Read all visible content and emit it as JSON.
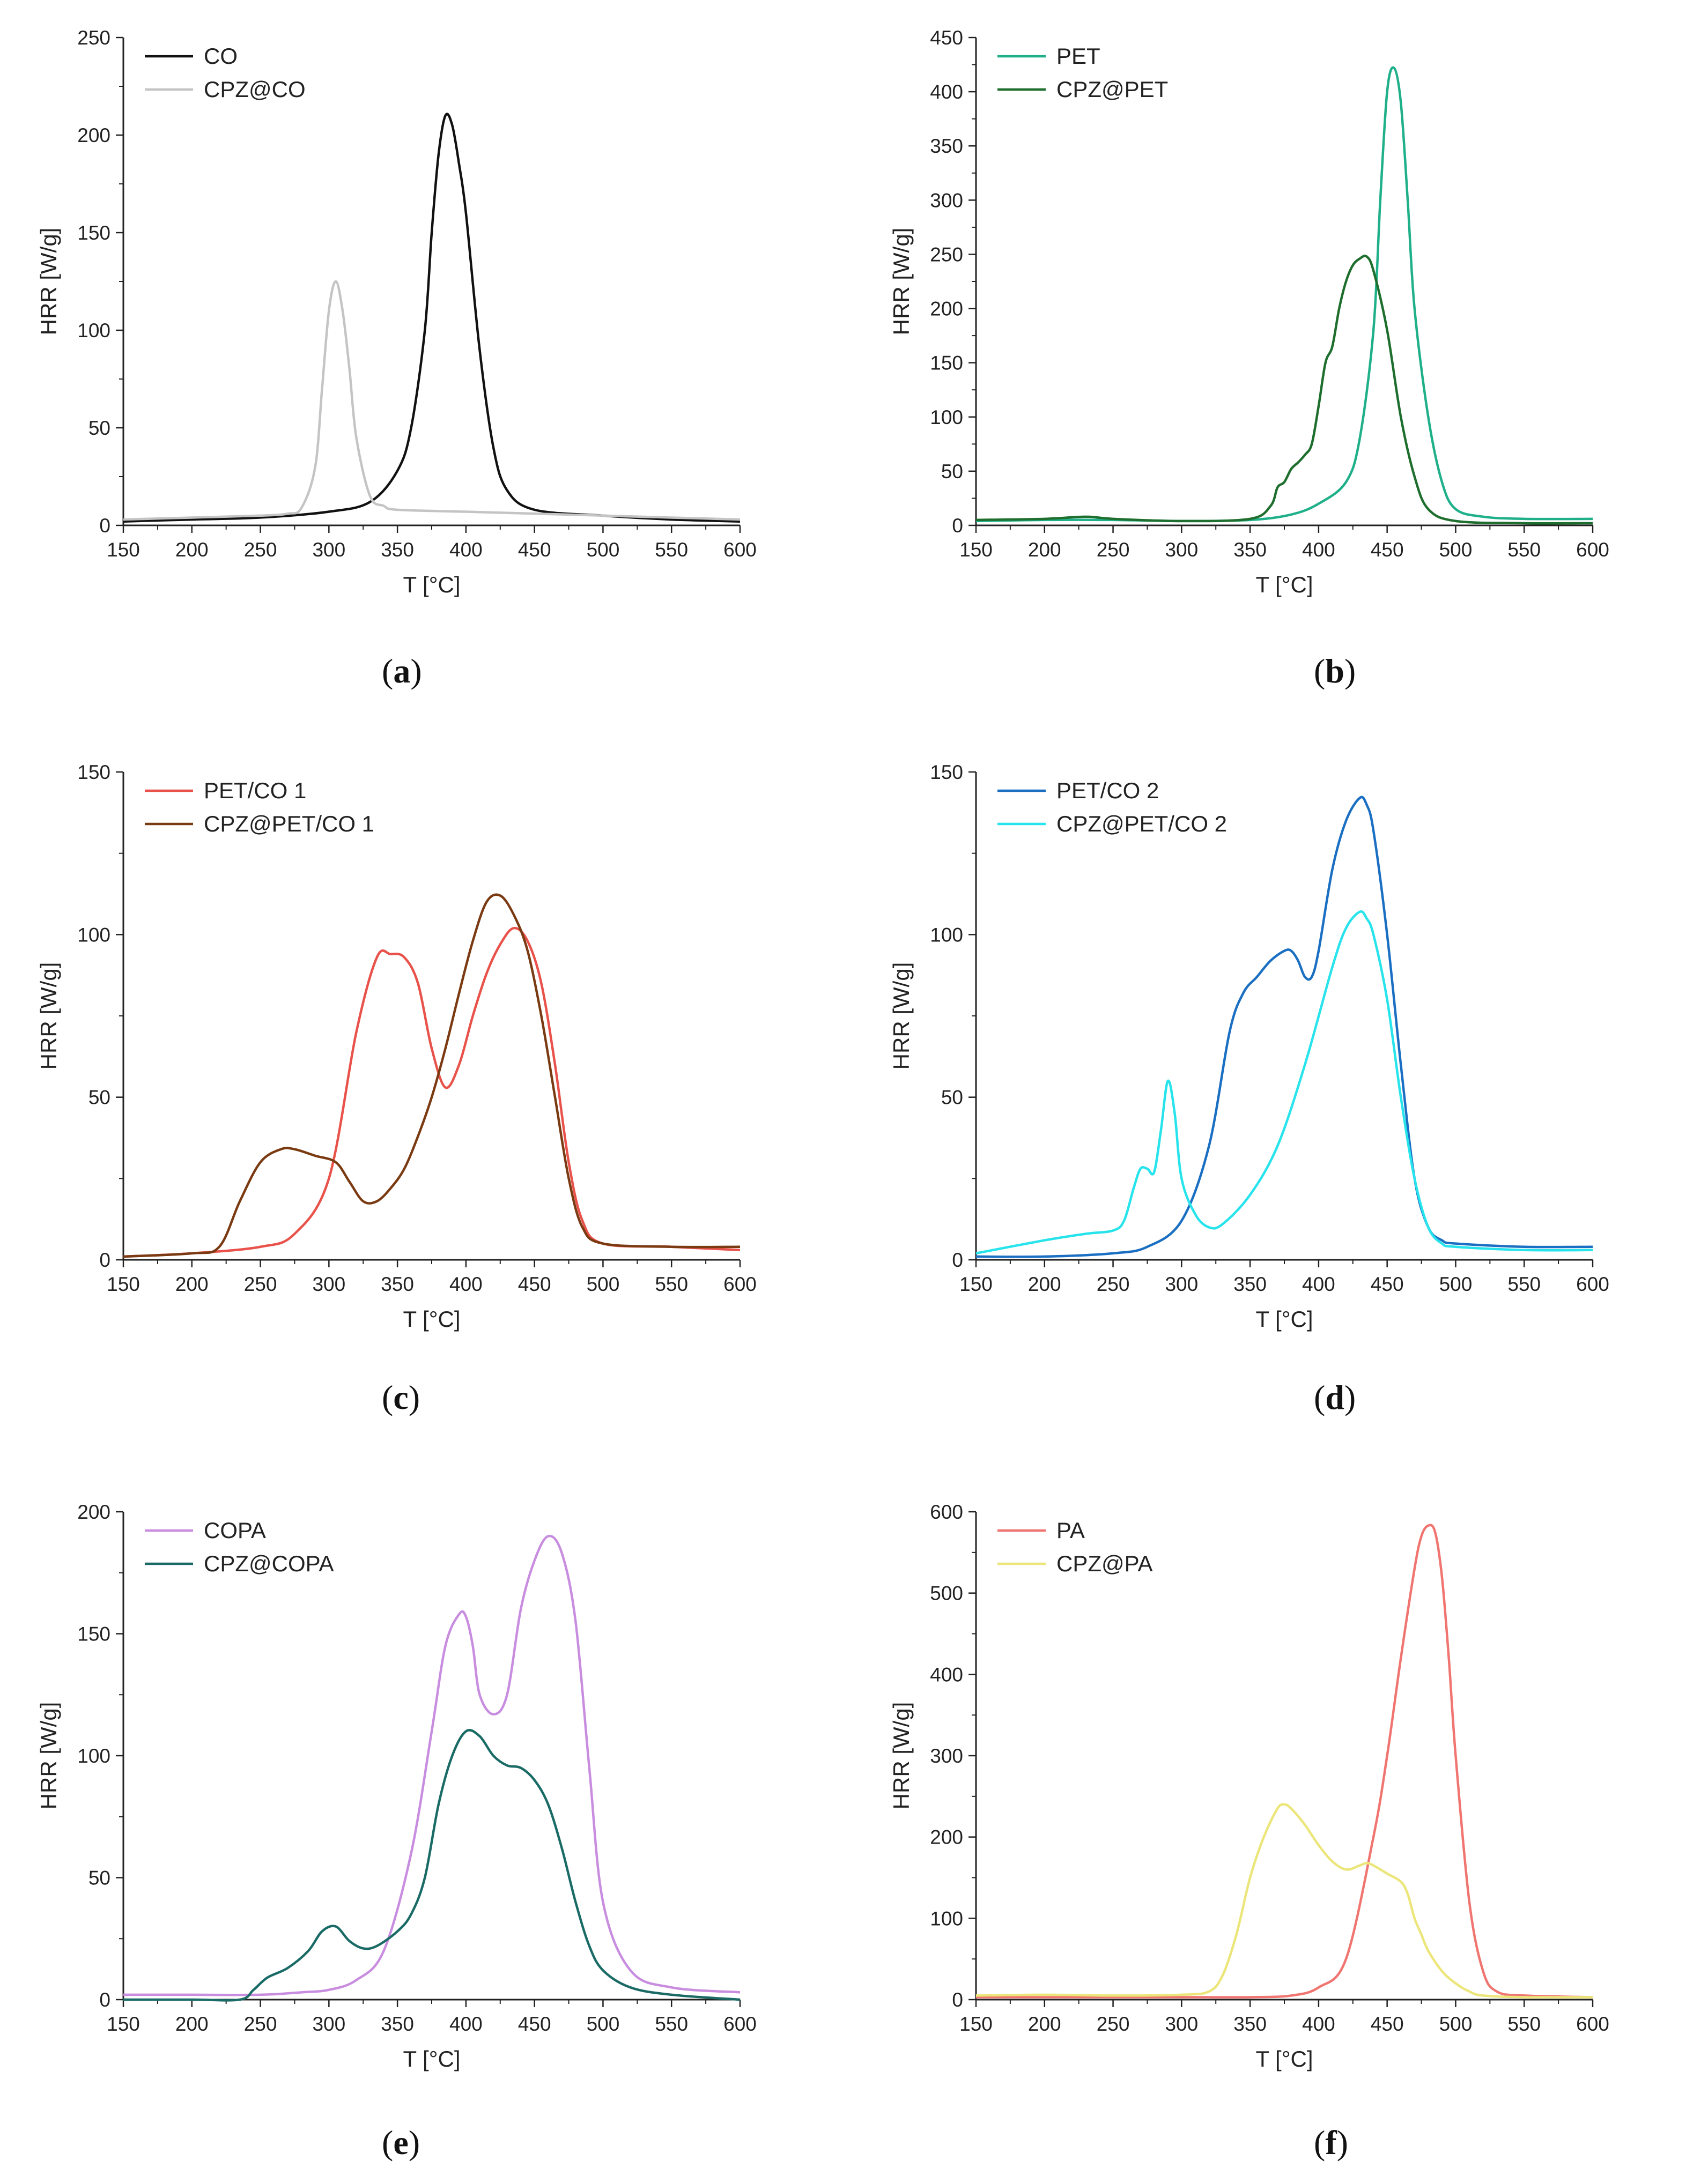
{
  "chart_data": [
    {
      "id": "a",
      "panel_label": "a",
      "type": "line",
      "xlabel": "T [°C]",
      "ylabel": "HRR [W/g]",
      "xlim": [
        150,
        600
      ],
      "ylim": [
        0,
        250
      ],
      "xticks": [
        150,
        200,
        250,
        300,
        350,
        400,
        450,
        500,
        550,
        600
      ],
      "yticks": [
        0,
        50,
        100,
        150,
        200,
        250
      ],
      "legend_position": "top-left",
      "series": [
        {
          "name": "CO",
          "color": "#111111",
          "x": [
            150,
            200,
            250,
            300,
            330,
            350,
            360,
            370,
            375,
            380,
            385,
            390,
            395,
            400,
            410,
            420,
            430,
            450,
            500,
            550,
            600
          ],
          "y": [
            2,
            3,
            4,
            7,
            12,
            28,
            50,
            100,
            150,
            190,
            210,
            205,
            185,
            160,
            90,
            40,
            18,
            8,
            5,
            3,
            2
          ]
        },
        {
          "name": "CPZ@CO",
          "color": "#c4c4c4",
          "x": [
            150,
            200,
            250,
            270,
            280,
            290,
            295,
            300,
            305,
            310,
            315,
            320,
            330,
            340,
            350,
            400,
            450,
            500,
            550,
            600
          ],
          "y": [
            3,
            4,
            5,
            6,
            9,
            30,
            70,
            110,
            125,
            110,
            80,
            45,
            15,
            10,
            8,
            7,
            6,
            5,
            4,
            3
          ]
        }
      ]
    },
    {
      "id": "b",
      "panel_label": "b",
      "type": "line",
      "xlabel": "T [°C]",
      "ylabel": "HRR [W/g]",
      "xlim": [
        150,
        600
      ],
      "ylim": [
        0,
        450
      ],
      "xticks": [
        150,
        200,
        250,
        300,
        350,
        400,
        450,
        500,
        550,
        600
      ],
      "yticks": [
        0,
        50,
        100,
        150,
        200,
        250,
        300,
        350,
        400,
        450
      ],
      "legend_position": "top-left",
      "series": [
        {
          "name": "PET",
          "color": "#1fb08a",
          "x": [
            150,
            200,
            250,
            300,
            350,
            380,
            400,
            420,
            430,
            440,
            445,
            450,
            455,
            460,
            465,
            470,
            480,
            490,
            500,
            520,
            550,
            600
          ],
          "y": [
            4,
            5,
            5,
            4,
            5,
            10,
            20,
            40,
            80,
            180,
            300,
            400,
            422,
            390,
            300,
            200,
            100,
            40,
            15,
            8,
            6,
            6
          ]
        },
        {
          "name": "CPZ@PET",
          "color": "#1e6e2e",
          "x": [
            150,
            200,
            230,
            250,
            300,
            350,
            365,
            370,
            375,
            380,
            385,
            390,
            395,
            400,
            405,
            410,
            415,
            420,
            425,
            430,
            435,
            440,
            450,
            460,
            470,
            480,
            500,
            550,
            600
          ],
          "y": [
            5,
            6,
            8,
            6,
            4,
            6,
            18,
            35,
            40,
            52,
            58,
            65,
            75,
            110,
            150,
            165,
            200,
            225,
            240,
            246,
            248,
            235,
            180,
            100,
            45,
            15,
            4,
            2,
            2
          ]
        }
      ]
    },
    {
      "id": "c",
      "panel_label": "c",
      "type": "line",
      "xlabel": "T [°C]",
      "ylabel": "HRR [W/g]",
      "xlim": [
        150,
        600
      ],
      "ylim": [
        0,
        150
      ],
      "xticks": [
        150,
        200,
        250,
        300,
        350,
        400,
        450,
        500,
        550,
        600
      ],
      "yticks": [
        0,
        50,
        100,
        150
      ],
      "legend_position": "top-left",
      "series": [
        {
          "name": "PET/CO 1",
          "color": "#e8524a",
          "x": [
            150,
            200,
            250,
            275,
            300,
            320,
            335,
            345,
            355,
            365,
            375,
            385,
            395,
            405,
            415,
            425,
            435,
            445,
            455,
            465,
            475,
            485,
            500,
            550,
            600
          ],
          "y": [
            1,
            2,
            4,
            8,
            25,
            70,
            93,
            94,
            93,
            85,
            65,
            53,
            60,
            75,
            88,
            97,
            102,
            98,
            85,
            60,
            30,
            12,
            5,
            4,
            3
          ]
        },
        {
          "name": "CPZ@PET/CO 1",
          "color": "#7a3a12",
          "x": [
            150,
            200,
            220,
            235,
            250,
            265,
            275,
            290,
            305,
            315,
            325,
            335,
            345,
            355,
            365,
            375,
            385,
            395,
            405,
            415,
            425,
            435,
            445,
            455,
            465,
            475,
            485,
            500,
            550,
            600
          ],
          "y": [
            1,
            2,
            4,
            18,
            30,
            34,
            34,
            32,
            30,
            24,
            18,
            18,
            22,
            28,
            38,
            50,
            65,
            82,
            98,
            110,
            112,
            106,
            95,
            75,
            50,
            25,
            10,
            5,
            4,
            4
          ]
        }
      ]
    },
    {
      "id": "d",
      "panel_label": "d",
      "type": "line",
      "xlabel": "T [°C]",
      "ylabel": "HRR [W/g]",
      "xlim": [
        150,
        600
      ],
      "ylim": [
        0,
        150
      ],
      "xticks": [
        150,
        200,
        250,
        300,
        350,
        400,
        450,
        500,
        550,
        600
      ],
      "yticks": [
        0,
        50,
        100,
        150
      ],
      "legend_position": "top-left",
      "series": [
        {
          "name": "PET/CO 2",
          "color": "#1a6fc2",
          "x": [
            150,
            200,
            250,
            275,
            300,
            320,
            335,
            345,
            355,
            365,
            375,
            380,
            385,
            390,
            395,
            400,
            410,
            420,
            430,
            435,
            440,
            450,
            460,
            470,
            480,
            490,
            500,
            550,
            600
          ],
          "y": [
            1,
            1,
            2,
            4,
            12,
            35,
            70,
            82,
            87,
            92,
            95,
            95,
            92,
            87,
            87,
            95,
            120,
            135,
            142,
            140,
            132,
            100,
            60,
            25,
            10,
            6,
            5,
            4,
            4
          ]
        },
        {
          "name": "CPZ@PET/CO 2",
          "color": "#26e3ec",
          "x": [
            150,
            200,
            230,
            250,
            258,
            265,
            270,
            275,
            280,
            285,
            290,
            295,
            300,
            310,
            320,
            330,
            350,
            370,
            390,
            410,
            420,
            430,
            435,
            440,
            450,
            460,
            470,
            480,
            490,
            500,
            550,
            600
          ],
          "y": [
            2,
            6,
            8,
            9,
            12,
            22,
            28,
            28,
            27,
            40,
            55,
            45,
            25,
            14,
            10,
            11,
            20,
            35,
            60,
            90,
            102,
            107,
            105,
            100,
            80,
            50,
            25,
            10,
            5,
            4,
            3,
            3
          ]
        }
      ]
    },
    {
      "id": "e",
      "panel_label": "e",
      "type": "line",
      "xlabel": "T [°C]",
      "ylabel": "HRR [W/g]",
      "xlim": [
        150,
        600
      ],
      "ylim": [
        0,
        200
      ],
      "xticks": [
        150,
        200,
        250,
        300,
        350,
        400,
        450,
        500,
        550,
        600
      ],
      "yticks": [
        0,
        50,
        100,
        150,
        200
      ],
      "legend_position": "top-left",
      "series": [
        {
          "name": "COPA",
          "color": "#c98de0",
          "x": [
            150,
            200,
            250,
            280,
            300,
            320,
            340,
            360,
            375,
            385,
            395,
            400,
            405,
            410,
            420,
            430,
            440,
            450,
            460,
            470,
            480,
            490,
            500,
            520,
            550,
            600
          ],
          "y": [
            2,
            2,
            2,
            3,
            4,
            8,
            20,
            60,
            110,
            145,
            158,
            157,
            145,
            125,
            117,
            125,
            160,
            180,
            190,
            183,
            155,
            95,
            40,
            12,
            5,
            3
          ]
        },
        {
          "name": "CPZ@COPA",
          "color": "#1a6b66",
          "x": [
            150,
            200,
            235,
            245,
            255,
            270,
            285,
            295,
            305,
            315,
            325,
            335,
            350,
            360,
            370,
            380,
            390,
            400,
            410,
            420,
            430,
            440,
            450,
            460,
            470,
            480,
            490,
            500,
            520,
            550,
            600
          ],
          "y": [
            0,
            0,
            0,
            4,
            9,
            13,
            20,
            28,
            30,
            24,
            21,
            22,
            28,
            35,
            50,
            80,
            100,
            110,
            108,
            100,
            96,
            95,
            90,
            80,
            62,
            40,
            22,
            12,
            5,
            2,
            0
          ]
        }
      ]
    },
    {
      "id": "f",
      "panel_label": "f",
      "type": "line",
      "xlabel": "T [°C]",
      "ylabel": "HRR [W/g]",
      "xlim": [
        150,
        600
      ],
      "ylim": [
        0,
        600
      ],
      "xticks": [
        150,
        200,
        250,
        300,
        350,
        400,
        450,
        500,
        550,
        600
      ],
      "yticks": [
        0,
        100,
        200,
        300,
        400,
        500,
        600
      ],
      "legend_position": "top-left",
      "series": [
        {
          "name": "PA",
          "color": "#f07570",
          "x": [
            150,
            200,
            250,
            300,
            350,
            380,
            400,
            420,
            440,
            450,
            460,
            470,
            475,
            480,
            485,
            490,
            495,
            500,
            510,
            520,
            530,
            550,
            600
          ],
          "y": [
            3,
            3,
            3,
            3,
            3,
            5,
            15,
            50,
            200,
            300,
            420,
            530,
            570,
            583,
            575,
            520,
            420,
            300,
            120,
            35,
            10,
            5,
            3
          ]
        },
        {
          "name": "CPZ@PA",
          "color": "#ece67a",
          "x": [
            150,
            200,
            250,
            300,
            320,
            330,
            340,
            350,
            360,
            370,
            375,
            380,
            390,
            400,
            410,
            420,
            430,
            435,
            440,
            450,
            460,
            465,
            470,
            475,
            480,
            490,
            500,
            510,
            520,
            550,
            600
          ],
          "y": [
            5,
            6,
            5,
            6,
            10,
            30,
            80,
            150,
            200,
            235,
            240,
            235,
            215,
            190,
            170,
            160,
            165,
            168,
            165,
            155,
            145,
            130,
            100,
            80,
            60,
            35,
            20,
            10,
            5,
            3,
            3
          ]
        }
      ]
    }
  ]
}
